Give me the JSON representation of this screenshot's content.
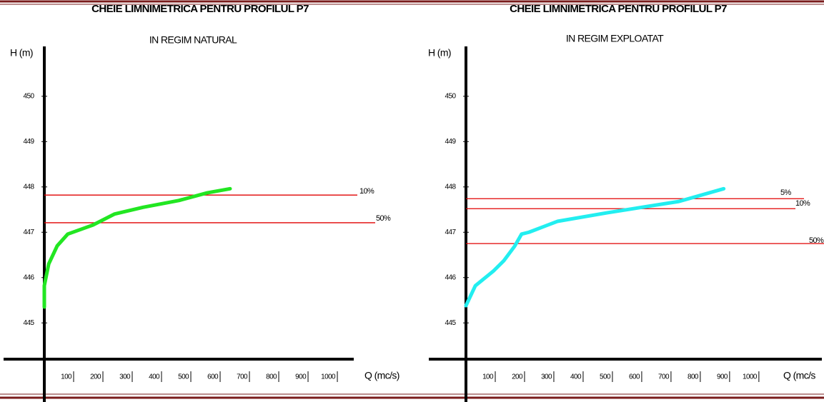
{
  "chart_data": [
    {
      "type": "line",
      "title": "CHEIE LIMNIMETRICA PENTRU PROFILUL P7",
      "subtitle": "IN REGIM NATURAL",
      "x_label": "Q (mc/s)",
      "y_label": "H (m)",
      "x": [
        0,
        0,
        15,
        44,
        80,
        166,
        239,
        337,
        459,
        556,
        634
      ],
      "series": [
        {
          "color": "#22e622",
          "values": [
            445.35,
            445.82,
            446.3,
            446.7,
            446.96,
            447.16,
            447.4,
            447.55,
            447.7,
            447.87,
            447.96
          ]
        }
      ],
      "reference_lines": [
        {
          "label": "10%",
          "value": 447.82,
          "color": "#e00000"
        },
        {
          "label": "50%",
          "value": 447.21,
          "color": "#e00000"
        }
      ],
      "xlim": [
        0,
        1056
      ],
      "xticks": [
        100,
        200,
        300,
        400,
        500,
        600,
        700,
        800,
        900,
        1000
      ],
      "ylim": [
        444.2,
        451.1
      ],
      "yticks": [
        445,
        446,
        447,
        448,
        449,
        450
      ]
    },
    {
      "type": "line",
      "title": "CHEIE LIMNIMETRICA PENTRU PROFILUL P7",
      "subtitle": "IN REGIM EXPLOATAT",
      "x_label": "Q (mc/s",
      "y_label": "H (m)",
      "x": [
        0,
        32,
        93,
        129,
        166,
        190,
        215,
        312,
        483,
        727,
        880
      ],
      "series": [
        {
          "color": "#22eef0",
          "values": [
            445.38,
            445.82,
            446.14,
            446.37,
            446.69,
            446.96,
            447.0,
            447.24,
            447.43,
            447.68,
            447.96
          ]
        }
      ],
      "reference_lines": [
        {
          "label": "5%",
          "value": 447.74,
          "color": "#e00000"
        },
        {
          "label": "10%",
          "value": 447.52,
          "color": "#e00000"
        },
        {
          "label": "50%",
          "value": 446.75,
          "color": "#e00000"
        }
      ],
      "xlim": [
        0,
        1215
      ],
      "xticks": [
        100,
        200,
        300,
        400,
        500,
        600,
        700,
        800,
        900,
        1000
      ],
      "ylim": [
        444.2,
        451.1
      ],
      "yticks": [
        445,
        446,
        447,
        448,
        449,
        450
      ]
    }
  ]
}
